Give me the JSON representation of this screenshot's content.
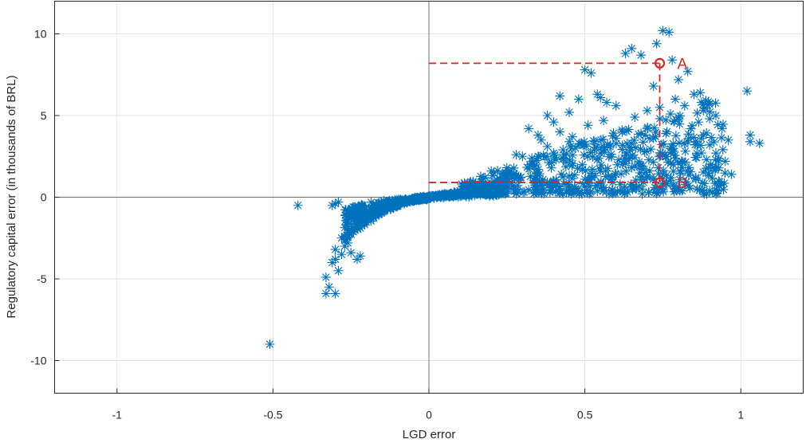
{
  "chart_data": {
    "type": "scatter",
    "xlabel": "LGD error",
    "ylabel": "Regulatory capital error (in thousands of BRL)",
    "xlim": [
      -1.2,
      1.2
    ],
    "ylim": [
      -12,
      12
    ],
    "xticks": [
      -1,
      -0.5,
      0,
      0.5,
      1
    ],
    "xtick_labels": [
      "-1",
      "-0.5",
      "0",
      "0.5",
      "1"
    ],
    "yticks": [
      10,
      5,
      0,
      -5,
      -10
    ],
    "ytick_labels": [
      "10",
      "5",
      "0",
      "-5",
      "-10"
    ],
    "grid": true,
    "zero_lines": true,
    "marker": "asterisk",
    "marker_color": "#0072BD",
    "annotation_color": "#D62728",
    "annotations": [
      {
        "label": "A",
        "x": 0.74,
        "y": 8.2
      },
      {
        "label": "B",
        "x": 0.74,
        "y": 0.9
      }
    ],
    "series": [
      {
        "points": [
          [
            -0.51,
            -9.0
          ],
          [
            -0.42,
            -0.5
          ],
          [
            -0.33,
            -5.9
          ],
          [
            -0.33,
            -4.9
          ],
          [
            -0.3,
            -5.9
          ],
          [
            -0.32,
            -5.5
          ],
          [
            -0.31,
            -4.0
          ],
          [
            -0.3,
            -3.8
          ],
          [
            -0.29,
            -4.5
          ],
          [
            -0.28,
            -3.5
          ],
          [
            -0.3,
            -3.2
          ],
          [
            -0.27,
            -3.0
          ],
          [
            -0.3,
            -0.4
          ],
          [
            -0.29,
            -0.3
          ],
          [
            -0.31,
            -0.5
          ],
          [
            -0.28,
            -2.5
          ],
          [
            -0.26,
            -2.8
          ],
          [
            -0.25,
            -3.4
          ],
          [
            -0.24,
            -1.8
          ],
          [
            -0.23,
            -3.8
          ],
          [
            -0.22,
            -3.6
          ],
          [
            -0.26,
            -1.5
          ],
          [
            -0.25,
            -1.0
          ],
          [
            0.35,
            3.8
          ],
          [
            0.38,
            5.0
          ],
          [
            0.4,
            4.6
          ],
          [
            0.42,
            6.2
          ],
          [
            0.45,
            5.2
          ],
          [
            0.45,
            3.4
          ],
          [
            0.48,
            6.0
          ],
          [
            0.5,
            7.8
          ],
          [
            0.52,
            7.6
          ],
          [
            0.54,
            6.3
          ],
          [
            0.55,
            6.1
          ],
          [
            0.57,
            5.8
          ],
          [
            0.6,
            5.6
          ],
          [
            0.63,
            8.8
          ],
          [
            0.65,
            9.1
          ],
          [
            0.68,
            8.7
          ],
          [
            0.7,
            5.3
          ],
          [
            0.72,
            6.8
          ],
          [
            0.73,
            9.4
          ],
          [
            0.75,
            10.2
          ],
          [
            0.77,
            10.1
          ],
          [
            0.78,
            8.4
          ],
          [
            0.8,
            7.2
          ],
          [
            0.83,
            7.7
          ],
          [
            0.85,
            6.3
          ],
          [
            0.88,
            5.3
          ],
          [
            0.9,
            4.8
          ],
          [
            0.92,
            5.0
          ],
          [
            0.95,
            2.2
          ],
          [
            0.97,
            1.4
          ],
          [
            0.92,
            0.2
          ],
          [
            0.93,
            0.7
          ],
          [
            0.9,
            0.4
          ],
          [
            0.88,
            0.3
          ],
          [
            0.86,
            0.5
          ],
          [
            0.9,
            3.2
          ],
          [
            0.92,
            2.7
          ],
          [
            0.88,
            3.8
          ],
          [
            1.02,
            6.5
          ],
          [
            1.03,
            3.8
          ],
          [
            1.03,
            3.4
          ],
          [
            1.06,
            3.3
          ],
          [
            0.2,
            1.6
          ],
          [
            0.25,
            1.8
          ],
          [
            0.28,
            2.6
          ],
          [
            0.3,
            2.5
          ],
          [
            0.33,
            2.4
          ],
          [
            0.35,
            2.5
          ],
          [
            0.38,
            3.1
          ],
          [
            0.4,
            2.7
          ],
          [
            0.43,
            2.9
          ],
          [
            0.47,
            3.0
          ],
          [
            0.5,
            3.2
          ],
          [
            0.53,
            2.9
          ],
          [
            0.55,
            2.7
          ],
          [
            0.58,
            3.1
          ],
          [
            0.6,
            3.6
          ],
          [
            0.62,
            4.0
          ],
          [
            0.65,
            3.3
          ],
          [
            0.68,
            3.9
          ],
          [
            0.7,
            4.2
          ],
          [
            0.72,
            3.6
          ],
          [
            0.76,
            3.9
          ],
          [
            0.8,
            4.8
          ],
          [
            0.82,
            5.6
          ],
          [
            0.84,
            4.2
          ],
          [
            0.86,
            3.2
          ],
          [
            0.78,
            2.9
          ],
          [
            0.81,
            2.2
          ],
          [
            0.83,
            1.6
          ],
          [
            0.55,
            1.6
          ],
          [
            0.6,
            1.4
          ],
          [
            0.65,
            1.8
          ],
          [
            0.7,
            1.2
          ],
          [
            0.5,
            1.1
          ],
          [
            0.45,
            1.3
          ],
          [
            0.4,
            1.0
          ],
          [
            0.1,
            0.4
          ],
          [
            0.14,
            0.8
          ],
          [
            0.08,
            0.3
          ],
          [
            0.05,
            0.2
          ],
          [
            0.03,
            0.1
          ],
          [
            0.18,
            1.2
          ],
          [
            0.22,
            1.0
          ],
          [
            0.32,
            4.2
          ],
          [
            0.36,
            3.5
          ],
          [
            0.42,
            4.0
          ],
          [
            0.46,
            3.7
          ],
          [
            0.51,
            4.4
          ],
          [
            0.56,
            4.7
          ],
          [
            0.66,
            4.9
          ],
          [
            0.74,
            5.5
          ],
          [
            0.79,
            6.0
          ],
          [
            0.87,
            6.4
          ],
          [
            0.94,
            4.2
          ],
          [
            0.96,
            3.5
          ],
          [
            0.91,
            1.8
          ],
          [
            0.89,
            2.3
          ]
        ]
      }
    ]
  }
}
